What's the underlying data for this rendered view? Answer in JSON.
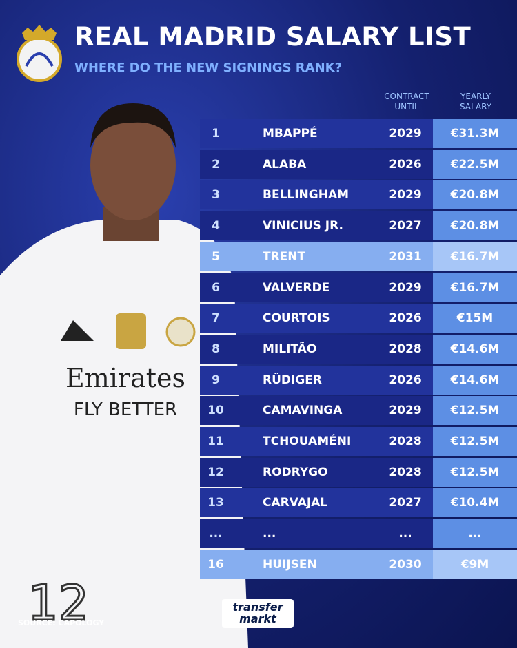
{
  "header": {
    "title": "REAL MADRID SALARY LIST",
    "subtitle": "WHERE DO THE NEW SIGNINGS RANK?"
  },
  "table": {
    "columns": [
      "CONTRACT UNTIL",
      "YEARLY SALARY"
    ],
    "rows": [
      [
        1,
        "MBAPPÉ",
        2029,
        "€31.3M"
      ],
      [
        2,
        "ALABA",
        2026,
        "€22.5M"
      ],
      [
        3,
        "BELLINGHAM",
        2029,
        "€20.8M"
      ],
      [
        4,
        "VINICIUS JR.",
        2027,
        "€20.8M"
      ],
      [
        5,
        "TRENT",
        2031,
        "€16.7M"
      ],
      [
        6,
        "VALVERDE",
        2029,
        "€16.7M"
      ],
      [
        7,
        "COURTOIS",
        2026,
        "€15M"
      ],
      [
        8,
        "MILITÃO",
        2028,
        "€14.6M"
      ],
      [
        9,
        "RÜDIGER",
        2026,
        "€14.6M"
      ],
      [
        10,
        "CAMAVINGA",
        2029,
        "€12.5M"
      ],
      [
        11,
        "TCHOUAMÉNI",
        2028,
        "€12.5M"
      ],
      [
        12,
        "RODRYGO",
        2028,
        "€12.5M"
      ],
      [
        13,
        "CARVAJAL",
        2027,
        "€10.4M"
      ],
      [
        "...",
        "...",
        "...",
        "..."
      ],
      [
        16,
        "HUIJSEN",
        2030,
        "€9M"
      ]
    ]
  },
  "photo": {
    "shirt_brand": "Emirates",
    "shirt_slogan": "FLY BETTER",
    "number": "12"
  },
  "footer": {
    "source": "SOURCE: CAPOLOGY",
    "logo_top": "transfer",
    "logo_bottom": "markt"
  }
}
